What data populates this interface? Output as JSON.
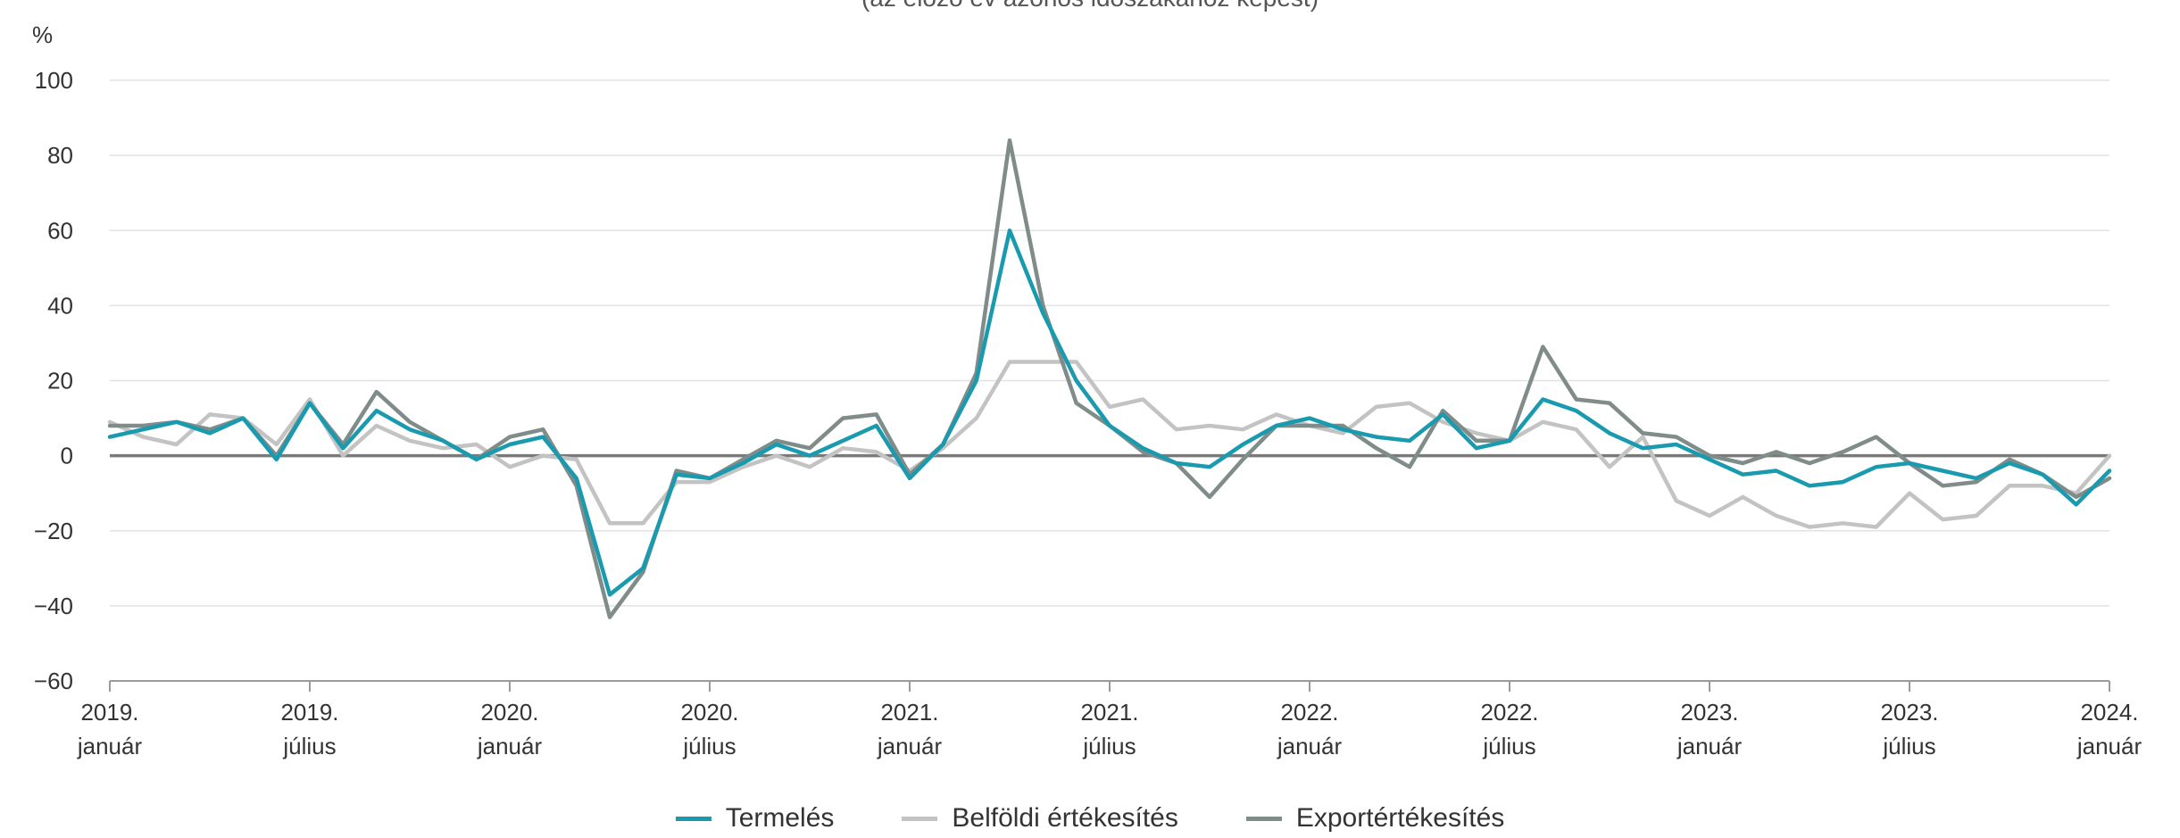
{
  "subtitle": "(az előző év azonos időszakához képest)",
  "chart_data": {
    "type": "line",
    "title": "",
    "ylabel": "%",
    "ylim": [
      -60,
      100
    ],
    "yticks": [
      100,
      80,
      60,
      40,
      20,
      0,
      -20,
      -40,
      -60
    ],
    "xlim": [
      0,
      60
    ],
    "grid": true,
    "legend_position": "bottom",
    "xticks": [
      {
        "index": 0,
        "year": "2019.",
        "month": "január"
      },
      {
        "index": 6,
        "year": "2019.",
        "month": "július"
      },
      {
        "index": 12,
        "year": "2020.",
        "month": "január"
      },
      {
        "index": 18,
        "year": "2020.",
        "month": "július"
      },
      {
        "index": 24,
        "year": "2021.",
        "month": "január"
      },
      {
        "index": 30,
        "year": "2021.",
        "month": "július"
      },
      {
        "index": 36,
        "year": "2022.",
        "month": "január"
      },
      {
        "index": 42,
        "year": "2022.",
        "month": "július"
      },
      {
        "index": 48,
        "year": "2023.",
        "month": "január"
      },
      {
        "index": 54,
        "year": "2023.",
        "month": "július"
      },
      {
        "index": 60,
        "year": "2024.",
        "month": "január"
      }
    ],
    "series": [
      {
        "name": "Termelés",
        "color": "#1a9aaf",
        "values": [
          5,
          7,
          9,
          6,
          10,
          -1,
          14,
          2,
          12,
          7,
          4,
          -1,
          3,
          5,
          -6,
          -37,
          -30,
          -5,
          -6,
          -2,
          3,
          0,
          4,
          8,
          -6,
          3,
          20,
          60,
          38,
          20,
          8,
          2,
          -2,
          -3,
          3,
          8,
          10,
          7,
          5,
          4,
          11,
          2,
          4,
          15,
          12,
          6,
          2,
          3,
          -1,
          -5,
          -4,
          -8,
          -7,
          -3,
          -2,
          -4,
          -6,
          -2,
          -5,
          -13,
          -4
        ]
      },
      {
        "name": "Belföldi értékesítés",
        "color": "#c3c3c3",
        "values": [
          9,
          5,
          3,
          11,
          10,
          3,
          15,
          0,
          8,
          4,
          2,
          3,
          -3,
          0,
          -1,
          -18,
          -18,
          -7,
          -7,
          -3,
          0,
          -3,
          2,
          1,
          -4,
          2,
          10,
          25,
          25,
          25,
          13,
          15,
          7,
          8,
          7,
          11,
          8,
          6,
          13,
          14,
          9,
          6,
          4,
          9,
          7,
          -3,
          5,
          -12,
          -16,
          -11,
          -16,
          -19,
          -18,
          -19,
          -10,
          -17,
          -16,
          -8,
          -8,
          -10,
          0
        ]
      },
      {
        "name": "Exportértékesítés",
        "color": "#7f8c8a",
        "values": [
          8,
          8,
          9,
          7,
          10,
          0,
          14,
          3,
          17,
          9,
          4,
          -1,
          5,
          7,
          -8,
          -43,
          -31,
          -4,
          -6,
          -1,
          4,
          2,
          10,
          11,
          -5,
          3,
          22,
          84,
          40,
          14,
          8,
          1,
          -2,
          -11,
          -1,
          8,
          8,
          8,
          2,
          -3,
          12,
          4,
          4,
          29,
          15,
          14,
          6,
          5,
          0,
          -2,
          1,
          -2,
          1,
          5,
          -2,
          -8,
          -7,
          -1,
          -5,
          -11,
          -6
        ]
      }
    ]
  }
}
